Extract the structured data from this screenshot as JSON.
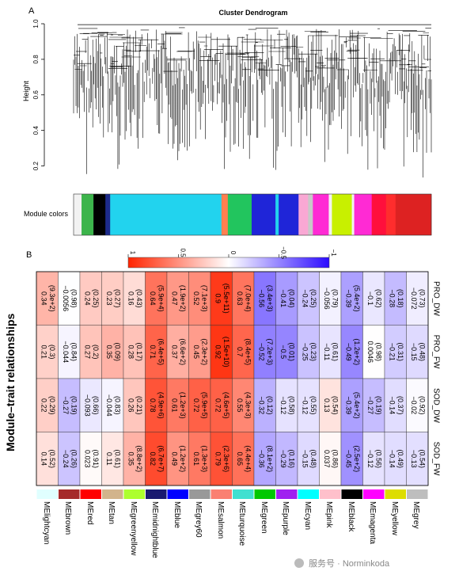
{
  "panel_a": {
    "letter": "A",
    "title": "Cluster Dendrogram",
    "ylabel": "Height",
    "yticks": [
      "0.2",
      "0.4",
      "0.6",
      "0.8",
      "1.0"
    ],
    "colors_label": "Module colors",
    "color_bands": [
      {
        "color": "#f2f2f2",
        "w": 1
      },
      {
        "color": "#3cb44b",
        "w": 1.5
      },
      {
        "color": "#000000",
        "w": 1.5
      },
      {
        "color": "#1d2a8a",
        "w": 0.6
      },
      {
        "color": "#22d3ee",
        "w": 14
      },
      {
        "color": "#ff7f50",
        "w": 0.8
      },
      {
        "color": "#22c55e",
        "w": 3
      },
      {
        "color": "#1f25d8",
        "w": 3
      },
      {
        "color": "#22d3ee",
        "w": 0.4
      },
      {
        "color": "#1f25d8",
        "w": 2.5
      },
      {
        "color": "#f9a8d4",
        "w": 1.2
      },
      {
        "color": "#c9c9c9",
        "w": 0.6
      },
      {
        "color": "#ff2ad4",
        "w": 2
      },
      {
        "color": "#f2f2f2",
        "w": 0.4
      },
      {
        "color": "#c8f000",
        "w": 2.5
      },
      {
        "color": "#f2f2f2",
        "w": 0.3
      },
      {
        "color": "#ff2ad4",
        "w": 2.2
      },
      {
        "color": "#ff0f3c",
        "w": 1.8
      },
      {
        "color": "#ff2d2d",
        "w": 1.2
      },
      {
        "color": "#dd2222",
        "w": 4.5
      }
    ]
  },
  "panel_b": {
    "letter": "B",
    "title": "Module–trait relationships",
    "colorbar_ticks": [
      "1",
      "0.5",
      "0",
      "−0.5",
      "−1"
    ],
    "traits": [
      "PRO_DW",
      "PRO_FW",
      "SOD_DW",
      "SOD_FW"
    ],
    "modules": [
      {
        "name": "MElightcyan",
        "color": "#e0ffff"
      },
      {
        "name": "MEbrown",
        "color": "#a52a2a"
      },
      {
        "name": "MEred",
        "color": "#ff0000"
      },
      {
        "name": "MEtan",
        "color": "#d2b48c"
      },
      {
        "name": "MEgreenyellow",
        "color": "#adff2f"
      },
      {
        "name": "MEmidnightblue",
        "color": "#191970"
      },
      {
        "name": "MEblue",
        "color": "#0000ff"
      },
      {
        "name": "MEgrey60",
        "color": "#999999"
      },
      {
        "name": "MEsalmon",
        "color": "#fa8072"
      },
      {
        "name": "MEturquoise",
        "color": "#40e0d0"
      },
      {
        "name": "MEgreen",
        "color": "#00c800"
      },
      {
        "name": "MEpurple",
        "color": "#a020f0"
      },
      {
        "name": "MEcyan",
        "color": "#00ffff"
      },
      {
        "name": "MEpink",
        "color": "#ffc0cb"
      },
      {
        "name": "MEblack",
        "color": "#000000"
      },
      {
        "name": "MEmagenta",
        "color": "#ff00ff"
      },
      {
        "name": "MEyellow",
        "color": "#dddd00"
      },
      {
        "name": "MEgrey",
        "color": "#bebebe"
      }
    ],
    "matrix": [
      [
        {
          "r": "0.34",
          "p": "(9.3e+2)",
          "v": 0.34
        },
        {
          "r": "0.21",
          "p": "(0.3)",
          "v": 0.21
        },
        {
          "r": "0.22",
          "p": "(0.29)",
          "v": 0.22
        },
        {
          "r": "0.14",
          "p": "(0.52)",
          "v": 0.14
        }
      ],
      [
        {
          "r": "−0.0056",
          "p": "(0.98)",
          "v": -0.0056
        },
        {
          "r": "−0.044",
          "p": "(0.84)",
          "v": -0.044
        },
        {
          "r": "−0.27",
          "p": "(0.19)",
          "v": -0.27
        },
        {
          "r": "−0.24",
          "p": "(0.26)",
          "v": -0.24
        }
      ],
      [
        {
          "r": "0.24",
          "p": "(0.25)",
          "v": 0.24
        },
        {
          "r": "0.27",
          "p": "(0.2)",
          "v": 0.27
        },
        {
          "r": "−0.093",
          "p": "(0.66)",
          "v": -0.093
        },
        {
          "r": "0.023",
          "p": "(0.91)",
          "v": 0.023
        }
      ],
      [
        {
          "r": "0.23",
          "p": "(0.27)",
          "v": 0.23
        },
        {
          "r": "0.35",
          "p": "(0.09)",
          "v": 0.35
        },
        {
          "r": "−0.044",
          "p": "(0.83)",
          "v": -0.044
        },
        {
          "r": "0.11",
          "p": "(0.61)",
          "v": 0.11
        }
      ],
      [
        {
          "r": "0.16",
          "p": "(0.43)",
          "v": 0.16
        },
        {
          "r": "0.28",
          "p": "(0.17)",
          "v": 0.28
        },
        {
          "r": "0.26",
          "p": "(0.21)",
          "v": 0.26
        },
        {
          "r": "0.35",
          "p": "(8.8e+2)",
          "v": 0.35
        }
      ],
      [
        {
          "r": "0.64",
          "p": "(5.9e+4)",
          "v": 0.64
        },
        {
          "r": "0.71",
          "p": "(6.4e+5)",
          "v": 0.71
        },
        {
          "r": "0.78",
          "p": "(4.9e+6)",
          "v": 0.78
        },
        {
          "r": "0.82",
          "p": "(6.7e+7)",
          "v": 0.82
        }
      ],
      [
        {
          "r": "0.47",
          "p": "(1.9e+2)",
          "v": 0.47
        },
        {
          "r": "0.37",
          "p": "(6.6e+2)",
          "v": 0.37
        },
        {
          "r": "0.61",
          "p": "(1.2e+3)",
          "v": 0.61
        },
        {
          "r": "0.49",
          "p": "(1.2e+2)",
          "v": 0.49
        }
      ],
      [
        {
          "r": "0.52",
          "p": "(7.1e+3)",
          "v": 0.52
        },
        {
          "r": "0.45",
          "p": "(2.3e+2)",
          "v": 0.45
        },
        {
          "r": "0.72",
          "p": "(5.9e+5)",
          "v": 0.72
        },
        {
          "r": "0.61",
          "p": "(1.3e+3)",
          "v": 0.61
        }
      ],
      [
        {
          "r": "0.9",
          "p": "(5.5e+11)",
          "v": 0.9
        },
        {
          "r": "0.92",
          "p": "(1.5e+10)",
          "v": 0.92
        },
        {
          "r": "0.72",
          "p": "(4.6e+5)",
          "v": 0.72
        },
        {
          "r": "0.79",
          "p": "(2.3e+6)",
          "v": 0.79
        }
      ],
      [
        {
          "r": "0.63",
          "p": "(7.0e+4)",
          "v": 0.63
        },
        {
          "r": "0.7",
          "p": "(8.4e+5)",
          "v": 0.7
        },
        {
          "r": "0.55",
          "p": "(4.3e+3)",
          "v": 0.55
        },
        {
          "r": "0.65",
          "p": "(4.4e+4)",
          "v": 0.65
        }
      ],
      [
        {
          "r": "−0.56",
          "p": "(3.4e+3)",
          "v": -0.56
        },
        {
          "r": "−0.52",
          "p": "(7.2e+3)",
          "v": -0.52
        },
        {
          "r": "−0.32",
          "p": "(0.12)",
          "v": -0.32
        },
        {
          "r": "−0.36",
          "p": "(8.1e+2)",
          "v": -0.36
        }
      ],
      [
        {
          "r": "−0.41",
          "p": "(0.04)",
          "v": -0.41
        },
        {
          "r": "−0.5",
          "p": "(0.01)",
          "v": -0.5
        },
        {
          "r": "−0.12",
          "p": "(0.58)",
          "v": -0.12
        },
        {
          "r": "−0.29",
          "p": "(0.16)",
          "v": -0.29
        }
      ],
      [
        {
          "r": "−0.24",
          "p": "(0.25)",
          "v": -0.24
        },
        {
          "r": "−0.25",
          "p": "(0.23)",
          "v": -0.25
        },
        {
          "r": "−0.12",
          "p": "(0.55)",
          "v": -0.12
        },
        {
          "r": "−0.15",
          "p": "(0.48)",
          "v": -0.15
        }
      ],
      [
        {
          "r": "−0.056",
          "p": "(0.79)",
          "v": -0.056
        },
        {
          "r": "−0.11",
          "p": "(0.61)",
          "v": -0.11
        },
        {
          "r": "0.13",
          "p": "(0.54)",
          "v": 0.13
        },
        {
          "r": "0.037",
          "p": "(0.86)",
          "v": 0.037
        }
      ],
      [
        {
          "r": "−0.39",
          "p": "(5.4e+2)",
          "v": -0.39
        },
        {
          "r": "−0.49",
          "p": "(1.2e+2)",
          "v": -0.49
        },
        {
          "r": "−0.39",
          "p": "(5.4e+2)",
          "v": -0.39
        },
        {
          "r": "−0.45",
          "p": "(2.5e+2)",
          "v": -0.45
        }
      ],
      [
        {
          "r": "−0.1",
          "p": "(0.62)",
          "v": -0.1
        },
        {
          "r": "0.0046",
          "p": "(0.98)",
          "v": 0.0046
        },
        {
          "r": "−0.27",
          "p": "(0.19)",
          "v": -0.27
        },
        {
          "r": "−0.12",
          "p": "(0.56)",
          "v": -0.12
        }
      ],
      [
        {
          "r": "−0.28",
          "p": "(0.18)",
          "v": -0.28
        },
        {
          "r": "−0.21",
          "p": "(0.31)",
          "v": -0.21
        },
        {
          "r": "−0.14",
          "p": "(0.37)",
          "v": -0.14
        },
        {
          "r": "−0.14",
          "p": "(0.49)",
          "v": -0.14
        }
      ],
      [
        {
          "r": "−0.072",
          "p": "(0.73)",
          "v": -0.072
        },
        {
          "r": "−0.15",
          "p": "(0.48)",
          "v": -0.15
        },
        {
          "r": "−0.02",
          "p": "(0.92)",
          "v": -0.02
        },
        {
          "r": "−0.13",
          "p": "(0.54)",
          "v": -0.13
        }
      ]
    ]
  },
  "watermark": "服务号 · Norminkoda",
  "watermark_icon": "wechat-icon"
}
